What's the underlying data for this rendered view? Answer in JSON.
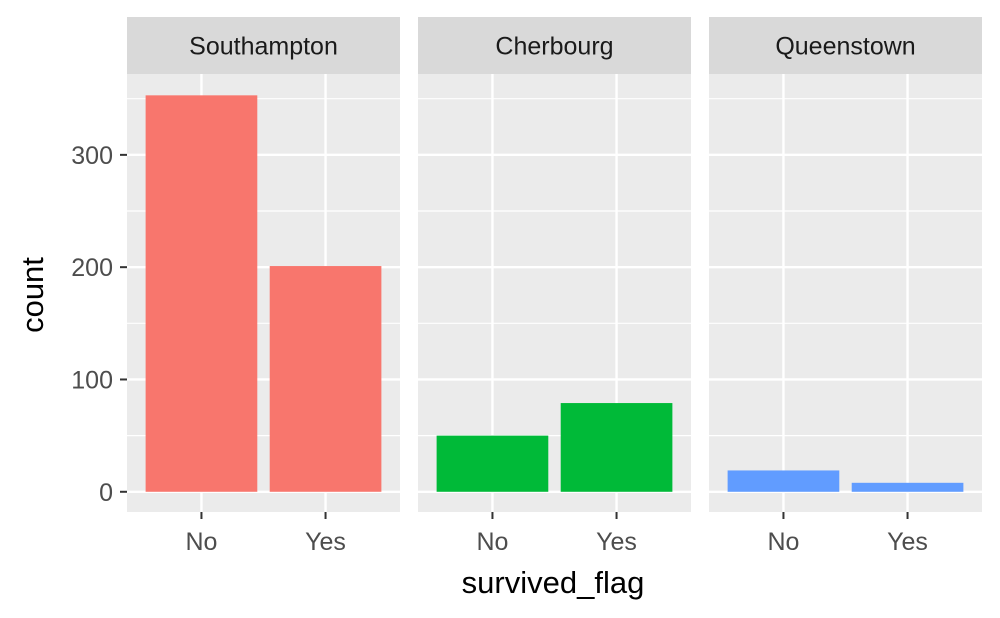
{
  "chart_data": {
    "type": "bar",
    "facet_variable": "embarked",
    "facets": [
      {
        "label": "Southampton",
        "color": "#F8766D",
        "categories": [
          "No",
          "Yes"
        ],
        "values": [
          353,
          201
        ]
      },
      {
        "label": "Cherbourg",
        "color": "#00BA38",
        "categories": [
          "No",
          "Yes"
        ],
        "values": [
          50,
          79
        ]
      },
      {
        "label": "Queenstown",
        "color": "#619CFF",
        "categories": [
          "No",
          "Yes"
        ],
        "values": [
          19,
          8
        ]
      }
    ],
    "xlabel": "survived_flag",
    "ylabel": "count",
    "ylim": [
      -18,
      372
    ],
    "y_ticks": [
      0,
      100,
      200,
      300
    ],
    "y_minor_ticks": [
      50,
      150,
      250,
      350
    ],
    "grid": true,
    "legend": "none",
    "colors": {
      "panel_background": "#EBEBEB",
      "strip_background": "#D9D9D9",
      "grid": "#FFFFFF"
    }
  }
}
